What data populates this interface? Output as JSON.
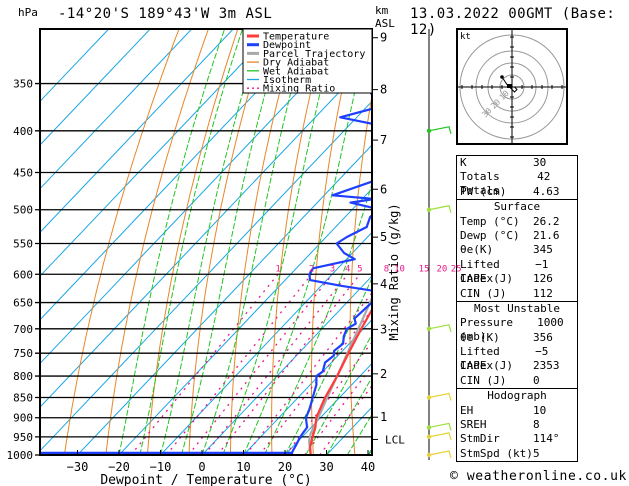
{
  "header": {
    "hpa_unit": "hPa",
    "location": "-14°20'S  189°43'W  3m  ASL",
    "km_unit_line1": "km",
    "km_unit_line2": "ASL",
    "datetime": "13.03.2022  00GMT  (Base: 12)"
  },
  "colors": {
    "temperature": "#ff3b3b",
    "dewpoint": "#1f3fff",
    "parcel": "#a9a9a9",
    "dry_adiabat": "#e8862a",
    "wet_adiabat": "#22c422",
    "isotherm": "#19a6e6",
    "mixing_ratio": "#e8198a"
  },
  "chart_data": [
    {
      "type": "line",
      "title": "Skew-T log-P diagram",
      "xlabel": "Dewpoint / Temperature (°C)",
      "ylabel": "hPa",
      "secondary_ylabel": "Mixing Ratio (g/kg)",
      "xlim": [
        -40,
        40
      ],
      "ylim": [
        1000,
        300
      ],
      "x_ticks": [
        -30,
        -20,
        -10,
        0,
        10,
        20,
        30,
        40
      ],
      "pressure_levels": [
        350,
        400,
        450,
        500,
        550,
        600,
        650,
        700,
        750,
        800,
        850,
        900,
        950,
        1000
      ],
      "km_ticks": [
        1,
        2,
        3,
        4,
        5,
        6,
        7,
        8,
        9
      ],
      "lcl_label": "LCL",
      "mixing_ratio_labels": [
        1,
        2,
        3,
        4,
        5,
        8,
        10,
        15,
        20,
        25
      ],
      "legend": [
        {
          "name": "Temperature",
          "key": "temperature"
        },
        {
          "name": "Dewpoint",
          "key": "dewpoint"
        },
        {
          "name": "Parcel Trajectory",
          "key": "parcel"
        },
        {
          "name": "Dry Adiabat",
          "key": "dry_adiabat"
        },
        {
          "name": "Wet Adiabat",
          "key": "wet_adiabat"
        },
        {
          "name": "Isotherm",
          "key": "isotherm"
        },
        {
          "name": "Mixing Ratio",
          "key": "mixing_ratio"
        }
      ],
      "legend_position": "top-right",
      "series": [
        {
          "name": "Temperature",
          "unit": "°C",
          "points": [
            [
              1000,
              26.2
            ],
            [
              975,
              24.0
            ],
            [
              950,
              22.5
            ],
            [
              925,
              21.0
            ],
            [
              900,
              19.0
            ],
            [
              850,
              16.5
            ],
            [
              800,
              14.5
            ],
            [
              750,
              12.0
            ],
            [
              700,
              9.5
            ],
            [
              650,
              7.0
            ],
            [
              600,
              3.5
            ],
            [
              550,
              -1.5
            ],
            [
              500,
              -6.0
            ],
            [
              450,
              -11.5
            ],
            [
              400,
              -18.0
            ],
            [
              350,
              -25.5
            ],
            [
              320,
              -30.5
            ],
            [
              300,
              -33.5
            ]
          ]
        },
        {
          "name": "Dewpoint",
          "unit": "°C",
          "points": [
            [
              1000,
              21.6
            ],
            [
              990,
              21.0
            ],
            [
              975,
              20.5
            ],
            [
              950,
              19.5
            ],
            [
              925,
              19.0
            ],
            [
              900,
              16.5
            ],
            [
              880,
              15.5
            ],
            [
              850,
              13.5
            ],
            [
              820,
              11.5
            ],
            [
              800,
              9.5
            ],
            [
              790,
              10.0
            ],
            [
              770,
              8.5
            ],
            [
              755,
              9.0
            ],
            [
              745,
              8.0
            ],
            [
              730,
              8.5
            ],
            [
              715,
              7.0
            ],
            [
              700,
              6.0
            ],
            [
              690,
              7.0
            ],
            [
              680,
              5.5
            ],
            [
              650,
              6.0
            ],
            [
              630,
              5.0
            ],
            [
              620,
              -5.0
            ],
            [
              610,
              -14.0
            ],
            [
              600,
              -15.5
            ],
            [
              590,
              -16.0
            ],
            [
              575,
              -8.0
            ],
            [
              565,
              -12.0
            ],
            [
              550,
              -16.0
            ],
            [
              540,
              -15.0
            ],
            [
              525,
              -12.5
            ],
            [
              510,
              -14.0
            ],
            [
              500,
              -13.0
            ],
            [
              490,
              -22.0
            ],
            [
              485,
              -17.0
            ],
            [
              480,
              -28.0
            ],
            [
              460,
              -21.0
            ],
            [
              440,
              -21.5
            ],
            [
              420,
              -24.0
            ],
            [
              410,
              -26.5
            ],
            [
              400,
              -25.0
            ],
            [
              385,
              -44.0
            ],
            [
              370,
              -34.5
            ],
            [
              360,
              -42.0
            ],
            [
              350,
              -36.5
            ],
            [
              340,
              -33.0
            ],
            [
              320,
              -41.0
            ],
            [
              305,
              -38.0
            ],
            [
              300,
              -38.5
            ]
          ]
        },
        {
          "name": "Parcel Trajectory",
          "unit": "°C",
          "points": [
            [
              1000,
              26.2
            ],
            [
              960,
              22.5
            ],
            [
              940,
              21.2
            ],
            [
              900,
              19.5
            ],
            [
              850,
              17.0
            ],
            [
              800,
              14.5
            ],
            [
              750,
              11.7
            ],
            [
              700,
              8.8
            ],
            [
              650,
              5.6
            ],
            [
              600,
              2.1
            ],
            [
              550,
              -2.0
            ],
            [
              500,
              -6.6
            ],
            [
              450,
              -12.0
            ],
            [
              400,
              -18.5
            ],
            [
              350,
              -26.5
            ],
            [
              320,
              -31.5
            ],
            [
              300,
              -35.5
            ]
          ]
        }
      ]
    },
    {
      "type": "scatter",
      "title": "Hodograph",
      "unit_label": "kt",
      "ring_labels": [
        10,
        20,
        30
      ],
      "points_kt": [
        [
          -4,
          4
        ],
        [
          -2,
          1
        ],
        [
          0,
          -1
        ],
        [
          1,
          -2
        ],
        [
          2,
          -1
        ],
        [
          1,
          0
        ]
      ]
    }
  ],
  "wind_barbs": [
    {
      "pressure": 1000,
      "color": "#e8d23a"
    },
    {
      "pressure": 950,
      "color": "#e8d23a"
    },
    {
      "pressure": 925,
      "color": "#9ee03a"
    },
    {
      "pressure": 850,
      "color": "#e8d23a"
    },
    {
      "pressure": 700,
      "color": "#9ee03a"
    },
    {
      "pressure": 500,
      "color": "#9ee03a"
    },
    {
      "pressure": 400,
      "color": "#22c422"
    }
  ],
  "indices": {
    "top": [
      {
        "label": "K",
        "value": "30"
      },
      {
        "label": "Totals Totals",
        "value": "42"
      },
      {
        "label": "PW (cm)",
        "value": "4.63"
      }
    ],
    "surface": {
      "title": "Surface",
      "rows": [
        {
          "label": "Temp (°C)",
          "value": "26.2"
        },
        {
          "label": "Dewp (°C)",
          "value": "21.6"
        },
        {
          "label": "θe(K)",
          "value": "345"
        },
        {
          "label": "Lifted Index",
          "value": "-1"
        },
        {
          "label": "CAPE (J)",
          "value": "126"
        },
        {
          "label": "CIN (J)",
          "value": "112"
        }
      ]
    },
    "most_unstable": {
      "title": "Most Unstable",
      "rows": [
        {
          "label": "Pressure (mb)",
          "value": "1000"
        },
        {
          "label": "θe (K)",
          "value": "356"
        },
        {
          "label": "Lifted Index",
          "value": "-5"
        },
        {
          "label": "CAPE (J)",
          "value": "2353"
        },
        {
          "label": "CIN (J)",
          "value": "0"
        }
      ]
    },
    "hodograph": {
      "title": "Hodograph",
      "rows": [
        {
          "label": "EH",
          "value": "10"
        },
        {
          "label": "SREH",
          "value": "8"
        },
        {
          "label": "StmDir",
          "value": "114°"
        },
        {
          "label": "StmSpd (kt)",
          "value": "5"
        }
      ]
    }
  },
  "footer": {
    "copyright": "© weatheronline.co.uk"
  }
}
